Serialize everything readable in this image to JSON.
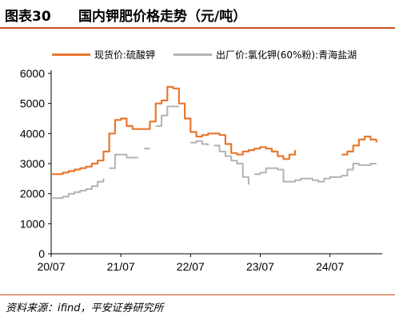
{
  "figure": {
    "number": "图表30",
    "title": "国内钾肥价格走势（元/吨）",
    "source": "资料来源：ifind，平安证券研究所"
  },
  "chart_data": {
    "type": "line",
    "x_tick_labels": [
      "20/07",
      "21/07",
      "22/07",
      "23/07",
      "24/07"
    ],
    "y_ticks": [
      0,
      1000,
      2000,
      3000,
      4000,
      5000,
      6000
    ],
    "ylim": [
      0,
      6000
    ],
    "xlabel": "",
    "ylabel": "",
    "grid": false,
    "legend_position": "top",
    "series": [
      {
        "name": "现货价:硫酸钾",
        "color": "#e8772e",
        "segments": [
          [
            [
              "2020-07",
              2650
            ],
            [
              "2020-08",
              2650
            ],
            [
              "2020-09",
              2700
            ],
            [
              "2020-10",
              2750
            ],
            [
              "2020-11",
              2800
            ],
            [
              "2020-12",
              2850
            ],
            [
              "2021-01",
              2900
            ],
            [
              "2021-02",
              3000
            ],
            [
              "2021-03",
              3100
            ],
            [
              "2021-04",
              3400
            ],
            [
              "2021-05",
              4000
            ],
            [
              "2021-06",
              4450
            ],
            [
              "2021-07",
              4500
            ],
            [
              "2021-08",
              4250
            ],
            [
              "2021-09",
              4150
            ],
            [
              "2021-10",
              4150
            ],
            [
              "2021-11",
              4150
            ],
            [
              "2021-12",
              4400
            ],
            [
              "2022-01",
              5000
            ],
            [
              "2022-02",
              5100
            ],
            [
              "2022-03",
              5550
            ],
            [
              "2022-04",
              5500
            ],
            [
              "2022-05",
              5000
            ],
            [
              "2022-06",
              4500
            ],
            [
              "2022-07",
              4050
            ],
            [
              "2022-08",
              3900
            ],
            [
              "2022-09",
              3950
            ],
            [
              "2022-10",
              4000
            ],
            [
              "2022-11",
              4000
            ],
            [
              "2022-12",
              3950
            ],
            [
              "2023-01",
              3650
            ],
            [
              "2023-02",
              3350
            ],
            [
              "2023-03",
              3300
            ],
            [
              "2023-04",
              3400
            ],
            [
              "2023-05",
              3450
            ],
            [
              "2023-06",
              3500
            ],
            [
              "2023-07",
              3550
            ],
            [
              "2023-08",
              3500
            ],
            [
              "2023-09",
              3400
            ],
            [
              "2023-10",
              3250
            ],
            [
              "2023-11",
              3150
            ],
            [
              "2023-12",
              3300
            ],
            [
              "2024-01",
              3450
            ]
          ],
          [
            [
              "2024-09",
              3300
            ],
            [
              "2024-10",
              3400
            ],
            [
              "2024-11",
              3600
            ],
            [
              "2024-12",
              3800
            ],
            [
              "2025-01",
              3900
            ],
            [
              "2025-02",
              3800
            ],
            [
              "2025-03",
              3700
            ]
          ]
        ]
      },
      {
        "name": "出厂价:氯化钾(60%粉):青海盐湖",
        "color": "#b3b3b3",
        "segments": [
          [
            [
              "2020-07",
              1850
            ],
            [
              "2020-08",
              1850
            ],
            [
              "2020-09",
              1900
            ],
            [
              "2020-10",
              2000
            ],
            [
              "2020-11",
              2050
            ],
            [
              "2020-12",
              2100
            ],
            [
              "2021-01",
              2150
            ],
            [
              "2021-02",
              2250
            ],
            [
              "2021-03",
              2400
            ],
            [
              "2021-04",
              2500
            ]
          ],
          [
            [
              "2021-05",
              2850
            ],
            [
              "2021-06",
              3300
            ],
            [
              "2021-07",
              3300
            ],
            [
              "2021-08",
              3200
            ],
            [
              "2021-09",
              3200
            ],
            [
              "2021-10",
              3200
            ]
          ],
          [
            [
              "2021-11",
              3500
            ],
            [
              "2021-12",
              3500
            ]
          ],
          [
            [
              "2022-01",
              4250
            ],
            [
              "2022-02",
              4600
            ],
            [
              "2022-03",
              4900
            ],
            [
              "2022-04",
              4900
            ],
            [
              "2022-05",
              4900
            ]
          ],
          [
            [
              "2022-07",
              3700
            ],
            [
              "2022-08",
              3750
            ],
            [
              "2022-09",
              3650
            ],
            [
              "2022-10",
              3600
            ]
          ],
          [
            [
              "2022-11",
              3600
            ],
            [
              "2022-12",
              3400
            ],
            [
              "2023-01",
              3250
            ],
            [
              "2023-02",
              3100
            ],
            [
              "2023-03",
              3000
            ],
            [
              "2023-04",
              2550
            ],
            [
              "2023-05",
              2300
            ]
          ],
          [
            [
              "2023-06",
              2650
            ],
            [
              "2023-07",
              2700
            ],
            [
              "2023-08",
              2850
            ],
            [
              "2023-09",
              2850
            ],
            [
              "2023-10",
              2800
            ],
            [
              "2023-11",
              2400
            ],
            [
              "2023-12",
              2400
            ],
            [
              "2024-01",
              2450
            ],
            [
              "2024-02",
              2500
            ],
            [
              "2024-03",
              2500
            ],
            [
              "2024-04",
              2450
            ],
            [
              "2024-05",
              2400
            ],
            [
              "2024-06",
              2500
            ],
            [
              "2024-07",
              2550
            ],
            [
              "2024-08",
              2550
            ],
            [
              "2024-09",
              2600
            ],
            [
              "2024-10",
              2800
            ],
            [
              "2024-11",
              3000
            ],
            [
              "2024-12",
              2950
            ],
            [
              "2025-01",
              2950
            ],
            [
              "2025-02",
              3000
            ],
            [
              "2025-03",
              3000
            ]
          ]
        ]
      }
    ]
  }
}
